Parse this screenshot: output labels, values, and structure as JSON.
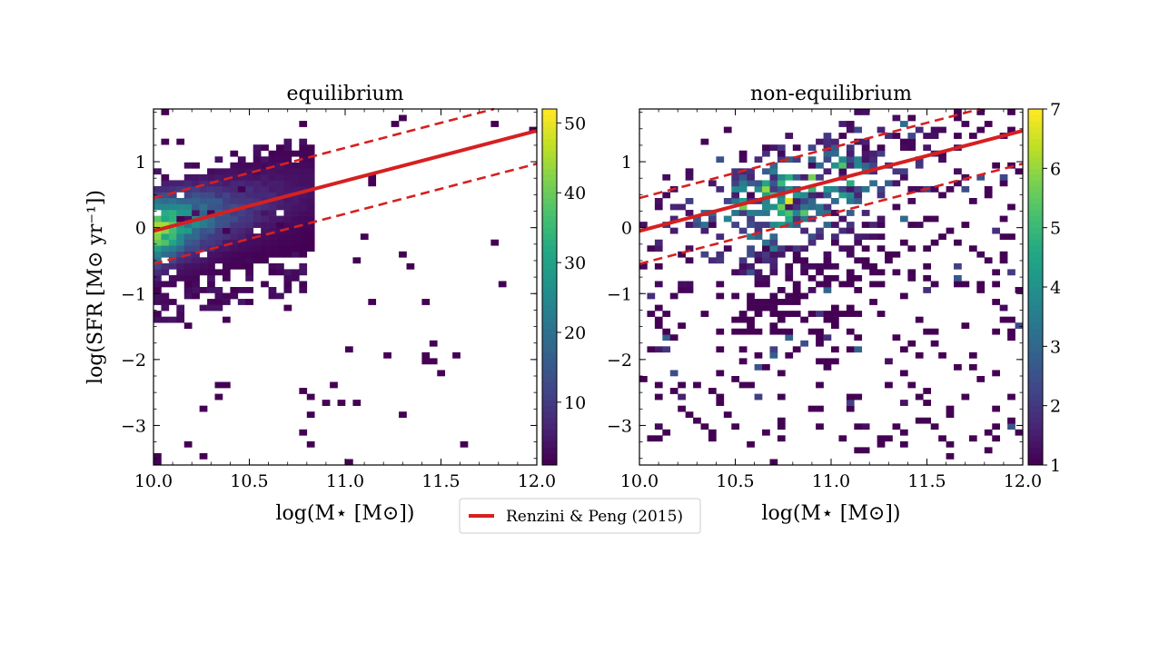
{
  "chart_data": [
    {
      "type": "heatmap",
      "title": "equilibrium",
      "xlabel": "log(M⋆ [M⊙])",
      "ylabel": "log(SFR [M⊙ yr⁻¹])",
      "xlim": [
        10.0,
        12.0
      ],
      "ylim": [
        -3.6,
        1.8
      ],
      "xticks": [
        10.0,
        10.5,
        11.0,
        11.5,
        12.0
      ],
      "xtick_labels": [
        "10.0",
        "10.5",
        "11.0",
        "11.5",
        "12.0"
      ],
      "yticks": [
        -3,
        -2,
        -1,
        0,
        1
      ],
      "ytick_labels": [
        "−3",
        "−2",
        "−1",
        "0",
        "1"
      ],
      "colorbar": {
        "colormap": "viridis",
        "range": [
          1,
          52
        ],
        "ticks": [
          10,
          20,
          30,
          40,
          50
        ],
        "tick_labels": [
          "10",
          "20",
          "30",
          "40",
          "50"
        ]
      },
      "bin_size": [
        0.04,
        0.09
      ],
      "density": {
        "ridge": [
          {
            "x_range": [
              10.0,
              10.16
            ],
            "y_range": [
              -0.2,
              0.4
            ],
            "weight": 40
          },
          {
            "x_range": [
              10.16,
              10.36
            ],
            "y_range": [
              -0.1,
              0.45
            ],
            "weight": 28
          },
          {
            "x_range": [
              10.36,
              10.6
            ],
            "y_range": [
              0.0,
              0.55
            ],
            "weight": 14
          },
          {
            "x_range": [
              10.6,
              10.82
            ],
            "y_range": [
              0.05,
              0.85
            ],
            "weight": 5
          }
        ],
        "tail_weight": 1
      },
      "reference_line": {
        "slope": 0.76,
        "intercept_at_x10": -0.05,
        "scatter": 0.5
      }
    },
    {
      "type": "heatmap",
      "title": "non-equilibrium",
      "xlabel": "log(M⋆ [M⊙])",
      "ylabel": "",
      "xlim": [
        10.0,
        12.0
      ],
      "ylim": [
        -3.6,
        1.8
      ],
      "xticks": [
        10.0,
        10.5,
        11.0,
        11.5,
        12.0
      ],
      "xtick_labels": [
        "10.0",
        "10.5",
        "11.0",
        "11.5",
        "12.0"
      ],
      "yticks": [
        -3,
        -2,
        -1,
        0,
        1
      ],
      "ytick_labels": [
        "−3",
        "−2",
        "−1",
        "0",
        "1"
      ],
      "colorbar": {
        "colormap": "viridis",
        "range": [
          1,
          7
        ],
        "ticks": [
          1,
          2,
          3,
          4,
          5,
          6,
          7
        ],
        "tick_labels": [
          "1",
          "2",
          "3",
          "4",
          "5",
          "6",
          "7"
        ]
      },
      "bin_size": [
        0.04,
        0.09
      ],
      "density": {
        "ridge": [
          {
            "x_range": [
              10.5,
              11.0
            ],
            "y_range": [
              -0.5,
              0.3
            ],
            "weight": 4
          },
          {
            "x_range": [
              10.6,
              10.8
            ],
            "y_range": [
              0.0,
              0.3
            ],
            "weight": 6
          }
        ],
        "tail_weight": 1
      },
      "reference_line": {
        "slope": 0.76,
        "intercept_at_x10": -0.05,
        "scatter": 0.5
      }
    }
  ],
  "legend": {
    "label": "Renzini & Peng (2015)",
    "color": "#d62020",
    "placement": "bottom-center"
  }
}
